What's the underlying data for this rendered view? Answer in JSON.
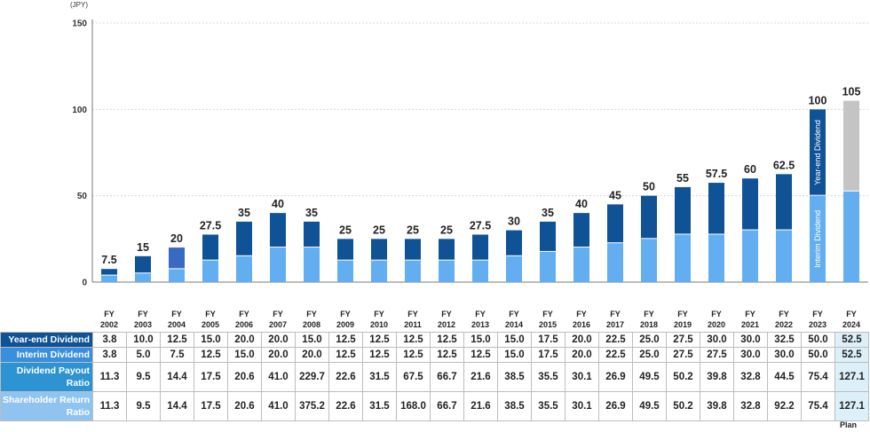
{
  "chart_data": {
    "type": "bar",
    "stacked": true,
    "unit": "(JPY)",
    "yticks": [
      0,
      50,
      100,
      150
    ],
    "ylim": [
      0,
      150
    ],
    "grid": true,
    "fy_label": "FY",
    "categories": [
      "2002",
      "2003",
      "2004",
      "2005",
      "2006",
      "2007",
      "2008",
      "2009",
      "2010",
      "2011",
      "2012",
      "2013",
      "2014",
      "2015",
      "2016",
      "2017",
      "2018",
      "2019",
      "2020",
      "2021",
      "2022",
      "2023",
      "2024"
    ],
    "series": [
      {
        "name": "Interim Dividend",
        "values": [
          3.8,
          5.0,
          7.5,
          12.5,
          15.0,
          20.0,
          20.0,
          12.5,
          12.5,
          12.5,
          12.5,
          12.5,
          15.0,
          17.5,
          20.0,
          22.5,
          25.0,
          27.5,
          27.5,
          30.0,
          30.0,
          50.0,
          52.5
        ]
      },
      {
        "name": "Year-end Dividend",
        "values": [
          3.8,
          10.0,
          12.5,
          15.0,
          20.0,
          20.0,
          15.0,
          12.5,
          12.5,
          12.5,
          12.5,
          15.0,
          15.0,
          17.5,
          20.0,
          22.5,
          25.0,
          27.5,
          30.0,
          30.0,
          32.5,
          50.0,
          52.5
        ]
      }
    ],
    "totals": [
      "7.5",
      "15",
      "20",
      "27.5",
      "35",
      "40",
      "35",
      "25",
      "25",
      "25",
      "25",
      "27.5",
      "30",
      "35",
      "40",
      "45",
      "50",
      "55",
      "57.5",
      "60",
      "62.5",
      "100",
      "105"
    ],
    "colors": {
      "interim": "#63aef0",
      "year_end": "#0f5296",
      "year_end_2004": "#3a69c4",
      "plan": "#c4c4c4",
      "grid": "#d8d8d8",
      "axis": "#7a7a7a"
    }
  },
  "table": {
    "rows": [
      {
        "label": "Year-end Dividend",
        "bg": "#0f5296",
        "values": [
          "3.8",
          "10.0",
          "12.5",
          "15.0",
          "20.0",
          "20.0",
          "15.0",
          "12.5",
          "12.5",
          "12.5",
          "12.5",
          "15.0",
          "15.0",
          "17.5",
          "20.0",
          "22.5",
          "25.0",
          "27.5",
          "30.0",
          "30.0",
          "32.5",
          "50.0",
          "52.5"
        ]
      },
      {
        "label": "Interim Dividend",
        "bg": "#3a8fdc",
        "values": [
          "3.8",
          "5.0",
          "7.5",
          "12.5",
          "15.0",
          "20.0",
          "20.0",
          "12.5",
          "12.5",
          "12.5",
          "12.5",
          "12.5",
          "15.0",
          "17.5",
          "20.0",
          "22.5",
          "25.0",
          "27.5",
          "27.5",
          "30.0",
          "30.0",
          "50.0",
          "52.5"
        ]
      },
      {
        "label": "Dividend Payout Ratio",
        "bg": "#2e93d2",
        "values": [
          "11.3",
          "9.5",
          "14.4",
          "17.5",
          "20.6",
          "41.0",
          "229.7",
          "22.6",
          "31.5",
          "67.5",
          "66.7",
          "21.6",
          "38.5",
          "35.5",
          "30.1",
          "26.9",
          "49.5",
          "50.2",
          "39.8",
          "32.8",
          "44.5",
          "75.4",
          "127.1"
        ]
      },
      {
        "label": "Shareholder Return Ratio",
        "bg": "#8fc3f0",
        "values": [
          "11.3",
          "9.5",
          "14.4",
          "17.5",
          "20.6",
          "41.0",
          "375.2",
          "22.6",
          "31.5",
          "168.0",
          "66.7",
          "21.6",
          "38.5",
          "35.5",
          "30.1",
          "26.9",
          "49.5",
          "50.2",
          "39.8",
          "32.8",
          "92.2",
          "75.4",
          "127.1"
        ]
      }
    ],
    "plan_label": "Plan"
  }
}
